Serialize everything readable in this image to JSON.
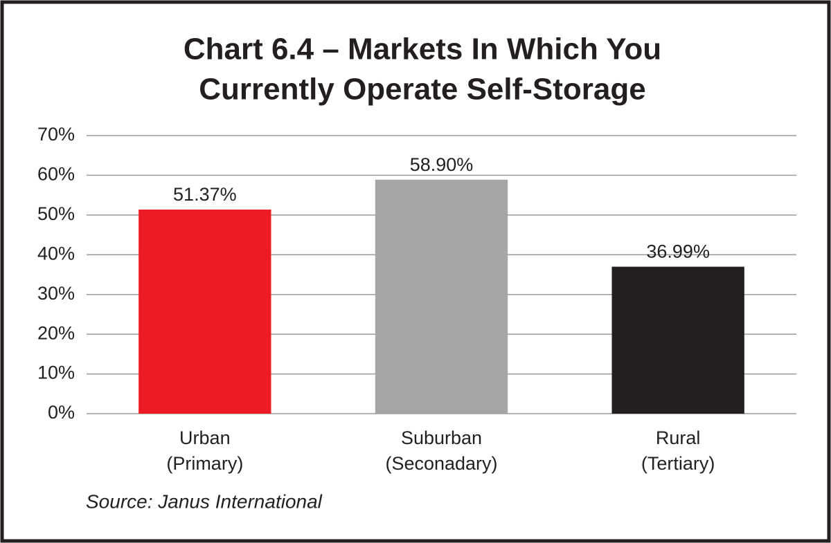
{
  "chart_data": {
    "type": "bar",
    "title": [
      "Chart 6.4 – Markets In Which You",
      "Currently Operate Self-Storage"
    ],
    "categories": [
      [
        "Urban",
        "(Primary)"
      ],
      [
        "Suburban",
        "(Seconadary)"
      ],
      [
        "Rural",
        "(Tertiary)"
      ]
    ],
    "values": [
      51.37,
      58.9,
      36.99
    ],
    "value_labels": [
      "51.37%",
      "58.90%",
      "36.99%"
    ],
    "colors": [
      "#ed1c24",
      "#a6a6a6",
      "#231f20"
    ],
    "ylim": [
      0,
      70
    ],
    "yticks": [
      {
        "value": 0,
        "label": "0%"
      },
      {
        "value": 10,
        "label": "10%"
      },
      {
        "value": 20,
        "label": "20%"
      },
      {
        "value": 30,
        "label": "30%"
      },
      {
        "value": 40,
        "label": "40%"
      },
      {
        "value": 50,
        "label": "50%"
      },
      {
        "value": 60,
        "label": "60%"
      },
      {
        "value": 70,
        "label": "70%"
      }
    ],
    "grid": true,
    "source": "Source: Janus International"
  }
}
